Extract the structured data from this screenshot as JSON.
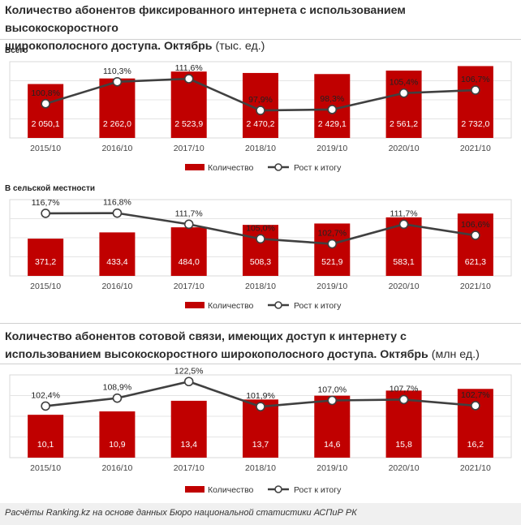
{
  "header1": {
    "line1": "Количество абонентов фиксированного интернета с использованием высокоскоростного",
    "line2": "широкополосного доступа. Октябрь",
    "unit": "(тыс. ед.)"
  },
  "header2": {
    "line1": "Количество абонентов сотовой связи, имеющих доступ к интернету с",
    "line2": "использованием высокоскоростного широкополосного доступа. Октябрь",
    "unit": "(млн ед.)"
  },
  "footer": "Расчёты Ranking.kz на основе данных Бюро национальной статистики АСПиР РК",
  "legend": {
    "bar": "Количество",
    "line": "Рост к итогу"
  },
  "colors": {
    "bar": "#c00000",
    "line": "#404040",
    "marker_fill": "#ffffff"
  },
  "chart_data": [
    {
      "type": "bar+line",
      "subtitle": "Всего",
      "categories": [
        "2015/10",
        "2016/10",
        "2017/10",
        "2018/10",
        "2019/10",
        "2020/10",
        "2021/10"
      ],
      "series": [
        {
          "name": "Количество",
          "type": "bar",
          "values": [
            2050.1,
            2262.0,
            2523.9,
            2470.2,
            2429.1,
            2561.2,
            2732.0
          ],
          "labels": [
            "2 050,1",
            "2 262,0",
            "2 523,9",
            "2 470,2",
            "2 429,1",
            "2 561,2",
            "2 732,0"
          ]
        },
        {
          "name": "Рост к итогу",
          "type": "line",
          "values": [
            100.8,
            110.3,
            111.6,
            97.9,
            98.3,
            105.4,
            106.7
          ],
          "labels": [
            "100,8%",
            "110,3%",
            "111,6%",
            "97,9%",
            "98,3%",
            "105,4%",
            "106,7%"
          ]
        }
      ]
    },
    {
      "type": "bar+line",
      "subtitle": "В сельской местности",
      "categories": [
        "2015/10",
        "2016/10",
        "2017/10",
        "2018/10",
        "2019/10",
        "2020/10",
        "2021/10"
      ],
      "series": [
        {
          "name": "Количество",
          "type": "bar",
          "values": [
            371.2,
            433.4,
            484.0,
            508.3,
            521.9,
            583.1,
            621.3
          ],
          "labels": [
            "371,2",
            "433,4",
            "484,0",
            "508,3",
            "521,9",
            "583,1",
            "621,3"
          ]
        },
        {
          "name": "Рост к итогу",
          "type": "line",
          "values": [
            116.7,
            116.8,
            111.7,
            105.0,
            102.7,
            111.7,
            106.6
          ],
          "labels": [
            "116,7%",
            "116,8%",
            "111,7%",
            "105,0%",
            "102,7%",
            "111,7%",
            "106,6%"
          ]
        }
      ]
    },
    {
      "type": "bar+line",
      "categories": [
        "2015/10",
        "2016/10",
        "2017/10",
        "2018/10",
        "2019/10",
        "2020/10",
        "2021/10"
      ],
      "series": [
        {
          "name": "Количество",
          "type": "bar",
          "values": [
            10.1,
            10.9,
            13.4,
            13.7,
            14.6,
            15.8,
            16.2
          ],
          "labels": [
            "10,1",
            "10,9",
            "13,4",
            "13,7",
            "14,6",
            "15,8",
            "16,2"
          ]
        },
        {
          "name": "Рост к итогу",
          "type": "line",
          "values": [
            102.4,
            108.9,
            122.5,
            101.9,
            107.0,
            107.7,
            102.7
          ],
          "labels": [
            "102,4%",
            "108,9%",
            "122,5%",
            "101,9%",
            "107,0%",
            "107,7%",
            "102,7%"
          ]
        }
      ]
    }
  ]
}
